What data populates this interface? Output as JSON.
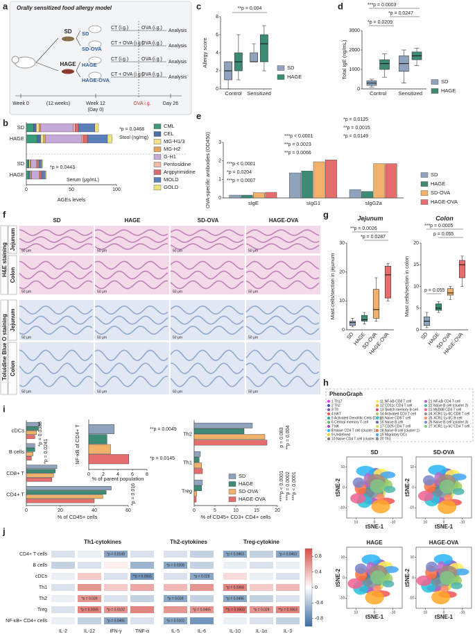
{
  "panel_labels": [
    "a",
    "b",
    "c",
    "d",
    "e",
    "f",
    "g",
    "h",
    "i",
    "j"
  ],
  "a": {
    "title": "Orally sensitized food allergy model",
    "diets": [
      "SD",
      "HAGE"
    ],
    "groups": [
      "SD",
      "SD-OVA",
      "HAGE",
      "HAGE-OVA"
    ],
    "treatments": [
      "CT (i.g.)",
      "CT + OVA (i.g.)",
      "CT (i.g.)",
      "CT + OVA (i.g.)"
    ],
    "challenge": "OVA (i.g.)",
    "readout": "Analysis",
    "timeline": [
      "Week 0",
      "(12 weeks)",
      "Week 12",
      "(Day 0)",
      "OVA i.g.",
      "Day 26"
    ]
  },
  "f": {
    "columns": [
      "SD",
      "HAGE",
      "SD-OVA",
      "HAGE-OVA"
    ],
    "stains": [
      "H&E staining",
      "Toluidine Blue O staining"
    ],
    "rows": [
      "Jejunum",
      "Colon",
      "Jejunum",
      "Colon"
    ],
    "scale_bar": "50 μm"
  },
  "h": {
    "title": "PhenoGraph",
    "clusters": [
      {
        "name": "1 Th17",
        "color": "#e040fb"
      },
      {
        "name": "2 Th2",
        "color": "#3f51b5"
      },
      {
        "name": "3 Tfr",
        "color": "#7e57c2"
      },
      {
        "name": "4 NKT",
        "color": "#ef5350"
      },
      {
        "name": "5 Activated Dendritic Cells (DCs)",
        "color": "#26a69a"
      },
      {
        "name": "6 Central memory T cell",
        "color": "#66bb6a"
      },
      {
        "name": "7 NK",
        "color": "#ab47bc"
      },
      {
        "name": "8 Naive CD4 T cell (cluster 1)",
        "color": "#29b6f6"
      },
      {
        "name": "9 Undefined",
        "color": "#ffca28"
      },
      {
        "name": "10 Naive CD4 T cell (cluster 2)",
        "color": "#8d6e63"
      },
      {
        "name": "11 NF-kB CD8 T cell",
        "color": "#ffee58"
      },
      {
        "name": "12 CD11c CD4 T cell",
        "color": "#ffa726"
      },
      {
        "name": "13 Switch memory B cell",
        "color": "#ec407a"
      },
      {
        "name": "14 Activated CD3 T cell",
        "color": "#9ccc65"
      },
      {
        "name": "15 Naive CD8 T cell",
        "color": "#26c6da"
      },
      {
        "name": "16 Naive B cell",
        "color": "#5c6bc0"
      },
      {
        "name": "17 CD25 CD4 T cell",
        "color": "#d4e157"
      },
      {
        "name": "18 Naive B cell (cluster 1)",
        "color": "#ff7043"
      },
      {
        "name": "19 Migratory DCs",
        "color": "#42a5f5"
      },
      {
        "name": "20 Th1",
        "color": "#78909c"
      },
      {
        "name": "21 NF-kB CD4 T cell",
        "color": "#ba68c8"
      },
      {
        "name": "22 Naive B cell (cluster 2)",
        "color": "#4db6ac"
      },
      {
        "name": "23 MyD88 CD4 T cell",
        "color": "#f06292"
      },
      {
        "name": "24 XCR1 Ly-6C CD8 T cell",
        "color": "#a1887f"
      },
      {
        "name": "25 XCR1 Ly-6C B cell",
        "color": "#ff8a65"
      },
      {
        "name": "26 Naive B cell (cluster 3)",
        "color": "#7986cb"
      },
      {
        "name": "27 XCR1 Ly-6C CD4 T cell",
        "color": "#81c784"
      }
    ],
    "panels": [
      "SD",
      "SD-OVA",
      "HAGE",
      "HAGE-OVA"
    ],
    "x_label": "tSNE-1",
    "y_label": "tSNE-2",
    "xlim": [
      15,
      -15
    ],
    "xticks": [
      10,
      0,
      -10
    ],
    "ylim": [
      -15,
      15
    ],
    "yticks": [
      -10,
      0,
      10
    ]
  },
  "chart_data": [
    {
      "type": "stacked_hbar",
      "categories": [
        "SD",
        "HAGE",
        "SD",
        "HAGE"
      ],
      "xlabel": "AGEs levels",
      "xlim": [
        0,
        100
      ],
      "xticks": [
        0,
        50,
        100
      ],
      "legend": "right",
      "series": [
        {
          "name": "CML",
          "color": "#3a9a7a",
          "values": [
            8,
            12,
            2,
            3
          ]
        },
        {
          "name": "CEL",
          "color": "#4a6fa5",
          "values": [
            3,
            4,
            1,
            1
          ]
        },
        {
          "name": "MG-H1/3",
          "color": "#f3e08a",
          "values": [
            3,
            3,
            1,
            1
          ]
        },
        {
          "name": "MG-H2",
          "color": "#e8a25c",
          "values": [
            2,
            2,
            1,
            1
          ]
        },
        {
          "name": "G-H1",
          "color": "#c5a8d8",
          "values": [
            36,
            40,
            6,
            8
          ]
        },
        {
          "name": "Pentosidine",
          "color": "#f4b7a4",
          "values": [
            2,
            2,
            1,
            1
          ]
        },
        {
          "name": "Argpyrimidine",
          "color": "#d96b6b",
          "values": [
            4,
            5,
            2,
            2
          ]
        },
        {
          "name": "MOLD",
          "color": "#5b7fb8",
          "values": [
            18,
            22,
            3,
            4
          ]
        },
        {
          "name": "GOLD",
          "color": "#ece67a",
          "values": [
            4,
            5,
            1,
            1
          ]
        }
      ],
      "annotations": [
        "*p = 0.0468",
        "Stool (ng/mg)",
        "*p = 0.0443",
        "Serum (μg/mL)"
      ]
    },
    {
      "type": "box",
      "ylabel": "Allergy score",
      "categories": [
        "Control",
        "Sensitized"
      ],
      "ylim": [
        0,
        8
      ],
      "yticks": [
        0,
        2,
        4,
        6,
        8
      ],
      "legend": "right",
      "series": [
        {
          "name": "SD",
          "color": "#8fa3bd",
          "values": [
            {
              "min": 0,
              "q1": 1,
              "median": 2,
              "q3": 3,
              "max": 3
            },
            {
              "min": 3,
              "q1": 3,
              "median": 3,
              "q3": 4,
              "max": 5
            }
          ]
        },
        {
          "name": "HAGE",
          "color": "#3d8b74",
          "values": [
            {
              "min": 1,
              "q1": 2,
              "median": 3,
              "q3": 4,
              "max": 6
            },
            {
              "min": 2,
              "q1": 3,
              "median": 5,
              "q3": 6,
              "max": 7
            }
          ]
        }
      ],
      "annotations": [
        "**p = 0.004"
      ]
    },
    {
      "type": "box",
      "ylabel": "Total IgE (ng/mL)",
      "categories": [
        "Control",
        "Sensitized"
      ],
      "ylim": [
        0,
        3000
      ],
      "yticks": [
        0,
        1000,
        2000,
        3000
      ],
      "legend": "right",
      "series": [
        {
          "name": "SD",
          "color": "#8fa3bd",
          "values": [
            {
              "min": 100,
              "q1": 180,
              "median": 300,
              "q3": 420,
              "max": 500
            },
            {
              "min": 300,
              "q1": 900,
              "median": 1300,
              "q3": 1700,
              "max": 2000
            }
          ]
        },
        {
          "name": "HAGE",
          "color": "#3d8b74",
          "values": [
            {
              "min": 600,
              "q1": 1000,
              "median": 1300,
              "q3": 1500,
              "max": 1800
            },
            {
              "min": 1200,
              "q1": 1500,
              "median": 1700,
              "q3": 1900,
              "max": 2100
            }
          ]
        }
      ],
      "annotations": [
        "***p = 0.0003",
        "*p = 0.0247",
        "*p = 0.0209"
      ]
    },
    {
      "type": "bar",
      "ylabel": "OVA-specific antibodies (OD450)",
      "categories": [
        "sIgE",
        "sIgG1",
        "sIgG2a"
      ],
      "ylim": [
        0,
        3
      ],
      "yticks": [
        0,
        1,
        2,
        3
      ],
      "legend": "right",
      "series": [
        {
          "name": "SD",
          "color": "#8fa3bd",
          "values": [
            0.15,
            1.35,
            0.45
          ]
        },
        {
          "name": "HAGE",
          "color": "#3d8b74",
          "values": [
            0.15,
            1.45,
            0.35
          ]
        },
        {
          "name": "SD-OVA",
          "color": "#f0b26b",
          "values": [
            0.28,
            1.95,
            1.85
          ]
        },
        {
          "name": "HAGE-OVA",
          "color": "#e66d6d",
          "values": [
            0.3,
            2.05,
            1.85
          ]
        }
      ],
      "annotations": [
        "***p < 0.0001",
        "*p = 0.0204",
        "***p = 0.0007",
        "***p < 0.0001",
        "**p = 0.0023",
        "**p = 0.0066",
        "*p = 0.0125",
        "**p = 0.0015",
        "*p = 0.0149"
      ]
    },
    {
      "type": "box",
      "title": "Jejunum",
      "ylabel": "Mast cells/section in jejunum",
      "categories": [
        "SD",
        "HAGE",
        "SD-OVA",
        "HAGE-OVA"
      ],
      "colors": [
        "#8fa3bd",
        "#3d8b74",
        "#f0b26b",
        "#e66d6d"
      ],
      "ylim": [
        0,
        30
      ],
      "yticks": [
        0,
        10,
        20,
        30
      ],
      "series": [
        {
          "values": [
            {
              "min": 1,
              "q1": 1.5,
              "median": 2.5,
              "q3": 3,
              "max": 4
            },
            {
              "min": 2,
              "q1": 3,
              "median": 3.5,
              "q3": 5,
              "max": 6
            },
            {
              "min": 3,
              "q1": 4,
              "median": 7,
              "q3": 14,
              "max": 18
            },
            {
              "min": 10,
              "q1": 11,
              "median": 19,
              "q3": 22,
              "max": 23
            }
          ]
        }
      ],
      "annotations": [
        "**p = 0.0026",
        "*p = 0.0287"
      ]
    },
    {
      "type": "box",
      "title": "Colon",
      "ylabel": "Mast cells/section in colon",
      "categories": [
        "SD",
        "HAGE",
        "SD-OVA",
        "HAGE-OVA"
      ],
      "colors": [
        "#8fa3bd",
        "#3d8b74",
        "#f0b26b",
        "#e66d6d"
      ],
      "ylim": [
        0,
        20
      ],
      "yticks": [
        0,
        5,
        10,
        15,
        20
      ],
      "series": [
        {
          "values": [
            {
              "min": 0.5,
              "q1": 1,
              "median": 2,
              "q3": 3,
              "max": 4
            },
            {
              "min": 4,
              "q1": 4.5,
              "median": 5,
              "q3": 6,
              "max": 6.5
            },
            {
              "min": 7,
              "q1": 8,
              "median": 8.5,
              "q3": 9.5,
              "max": 10
            },
            {
              "min": 10,
              "q1": 12,
              "median": 15,
              "q3": 16,
              "max": 17
            }
          ]
        }
      ],
      "annotations": [
        "***p = 0.0005",
        "p = 0.055",
        "p = 0.055"
      ]
    },
    {
      "type": "hbar",
      "xlabel": "% of CD45+ cells",
      "categories": [
        "cDCs",
        "B cells",
        "CD8+ T",
        "CD4+ T"
      ],
      "xlim": [
        0,
        60
      ],
      "xticks": [
        0,
        20,
        40,
        60
      ],
      "series": [
        {
          "name": "SD",
          "color": "#8fa3bd",
          "values": [
            8,
            5,
            18,
            50
          ]
        },
        {
          "name": "HAGE",
          "color": "#3d8b74",
          "values": [
            7,
            5,
            17,
            47
          ]
        },
        {
          "name": "SD-OVA",
          "color": "#f0b26b",
          "values": [
            6,
            4,
            16,
            45
          ]
        },
        {
          "name": "HAGE-OVA",
          "color": "#e66d6d",
          "values": [
            5,
            3,
            15,
            40
          ]
        }
      ],
      "annotations": [
        "*p = 0.0386",
        "*p = 0.0241",
        "*p = 0.016"
      ]
    },
    {
      "type": "hbar",
      "ylabel": "NF-κB of CD4+ T",
      "xlabel": "% of parent population",
      "categories": [
        null
      ],
      "xlim": [
        0,
        8
      ],
      "xticks": [
        0,
        2,
        4,
        6,
        8
      ],
      "series": [
        {
          "color": "#8fa3bd",
          "values": [
            3.5
          ]
        },
        {
          "color": "#3d8b74",
          "values": [
            2.5
          ]
        },
        {
          "color": "#f0b26b",
          "values": [
            3
          ]
        },
        {
          "color": "#e66d6d",
          "values": [
            5.5
          ]
        }
      ],
      "annotations": [
        "**p = 0.0045",
        "*p = 0.0145"
      ]
    },
    {
      "type": "hbar",
      "xlabel": "% of CD45+ CD3+ CD4+ cells",
      "categories": [
        "Th2",
        "Th1",
        "Treg"
      ],
      "xlim": [
        0,
        20
      ],
      "xticks": [
        0,
        5,
        10,
        15,
        20
      ],
      "legend": "right",
      "series": [
        {
          "name": "SD",
          "color": "#8fa3bd",
          "values": [
            14,
            1.5,
            2
          ]
        },
        {
          "name": "HAGE",
          "color": "#3d8b74",
          "values": [
            12,
            1.2,
            1.8
          ]
        },
        {
          "name": "SD-OVA",
          "color": "#f0b26b",
          "values": [
            17,
            1.8,
            0.6
          ]
        },
        {
          "name": "HAGE-OVA",
          "color": "#e66d6d",
          "values": [
            17.5,
            2,
            0.5
          ]
        }
      ],
      "annotations": [
        "p = 0.083",
        "**p = 0.004",
        "****p < 0.0001",
        "***p = 0.0002",
        "***p < 0.0001"
      ]
    },
    {
      "type": "heatmap",
      "groups": [
        {
          "name": "Th1-cytokines",
          "columns": [
            "IL-2",
            "IL-12",
            "IFN-γ",
            "TNF-α"
          ]
        },
        {
          "name": "Th2-cytokines",
          "columns": [
            "IL-5",
            "IL-6"
          ]
        },
        {
          "name": "Treg-cytokine",
          "columns": [
            "IL-10",
            "IL-1α",
            "IL-3"
          ]
        }
      ],
      "rows": [
        "CD4+ T cells",
        "B cells",
        "cDCs",
        "Th1",
        "Th2",
        "Treg",
        "NF-κB+ CD4+ cells"
      ],
      "values": [
        [
          -0.2,
          -0.1,
          -0.6,
          -0.2,
          -0.2,
          -0.3,
          -0.6,
          -0.3,
          -0.6
        ],
        [
          -0.3,
          -0.2,
          0.1,
          -0.5,
          -0.6,
          -0.3,
          -0.1,
          -0.2,
          -0.1
        ],
        [
          -0.1,
          0.3,
          -0.2,
          -0.7,
          -0.2,
          -0.6,
          0.2,
          -0.1,
          -0.2
        ],
        [
          -0.2,
          0.6,
          0.3,
          0.5,
          0.4,
          0.6,
          0.7,
          0.3,
          0.4
        ],
        [
          -0.1,
          0.6,
          -0.2,
          -0.3,
          -0.6,
          -0.3,
          -0.6,
          -0.3,
          -0.2
        ],
        [
          -0.2,
          0.7,
          0.6,
          0.7,
          0.6,
          0.6,
          0.8,
          0.6,
          0.7
        ],
        [
          -0.1,
          -0.3,
          -0.6,
          -0.2,
          -0.6,
          -0.7,
          -0.1,
          -0.2,
          -0.3
        ]
      ],
      "cell_labels": [
        [
          null,
          null,
          "*p = 0.0149",
          null,
          null,
          null,
          "*p = 0.0463",
          null,
          "*p = 0.0463"
        ],
        [
          null,
          null,
          null,
          null,
          "*p = 0.0208",
          null,
          null,
          null,
          null
        ],
        [
          null,
          null,
          null,
          "**p = 0.0065",
          null,
          "*p = 0.028",
          null,
          null,
          null
        ],
        [
          null,
          null,
          null,
          null,
          null,
          null,
          "*p = 0.0368",
          null,
          null
        ],
        [
          null,
          "*p = 0.039",
          null,
          null,
          "*p = 0.039",
          null,
          "*p = 0.0496",
          null,
          null
        ],
        [
          null,
          "*p = 0.0065",
          "*p = 0.0102",
          null,
          null,
          "*p = 0.0465",
          "**p = 0.0003",
          "*p = 0.028",
          "**p = 0.0063"
        ],
        [
          null,
          null,
          "*p = 0.0465",
          null,
          "*p = 0.0102",
          null,
          null,
          null,
          null
        ]
      ],
      "zlim": [
        -1,
        1
      ],
      "zticks": [
        0.8,
        0.4,
        0,
        -0.4,
        -0.8
      ],
      "colorscale": [
        "#3b6aa0",
        "#ffffff",
        "#d6504a"
      ]
    }
  ]
}
